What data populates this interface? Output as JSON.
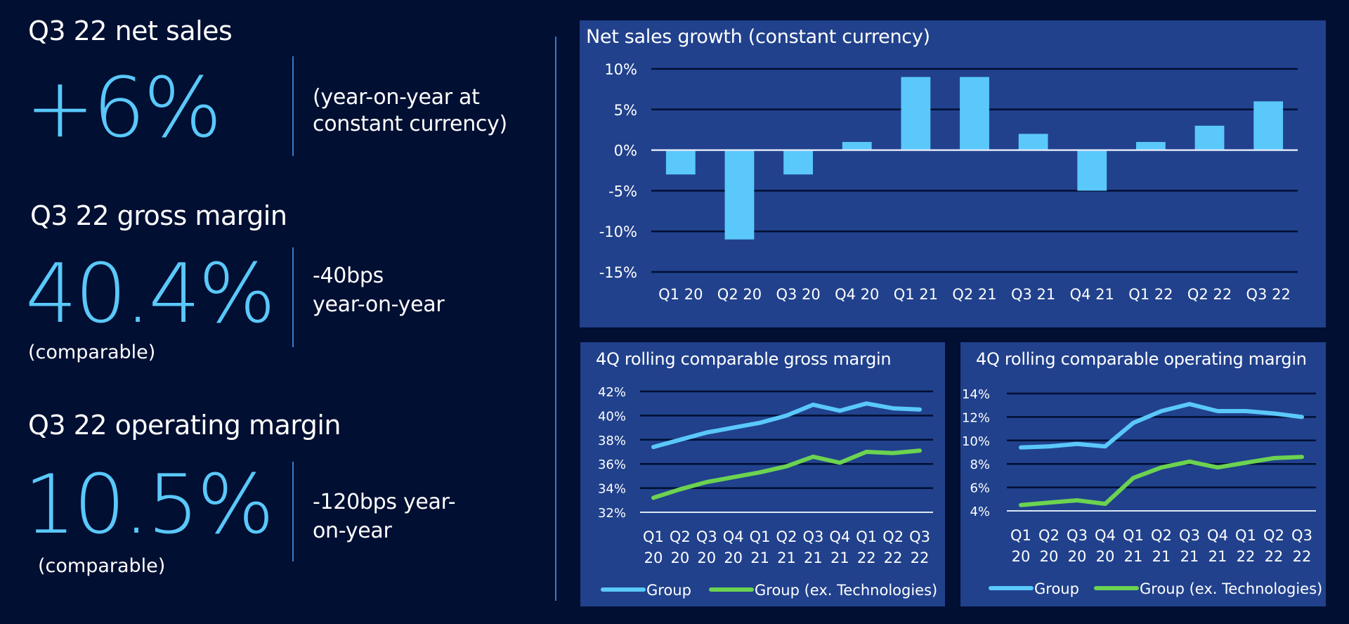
{
  "colors": {
    "background": "#000f32",
    "panel": "#21418c",
    "accent": "#5ac8fa",
    "group_line": "#5ac8fa",
    "group_ex_tech_line": "#6cd350",
    "gridline": "#000f32",
    "baseline": "#dde6f5",
    "separator": "#3a78c8"
  },
  "kpis": [
    {
      "title": "Q3 22 net sales",
      "value": "+6%",
      "note_line1": "(year-on-year at",
      "note_line2": "constant currency)",
      "sub": ""
    },
    {
      "title": "Q3 22 gross margin",
      "value": "40.4%",
      "note_line1": "-40bps",
      "note_line2": "year-on-year",
      "sub": "(comparable)"
    },
    {
      "title": "Q3 22 operating margin",
      "value": "10.5%",
      "note_line1": "-120bps year-",
      "note_line2": "on-year",
      "sub": "(comparable)"
    }
  ],
  "chart_data": [
    {
      "type": "bar",
      "title": "Net sales growth (constant currency)",
      "categories": [
        "Q1 20",
        "Q2 20",
        "Q3 20",
        "Q4 20",
        "Q1 21",
        "Q2 21",
        "Q3 21",
        "Q4 21",
        "Q1 22",
        "Q2 22",
        "Q3 22"
      ],
      "values": [
        -3,
        -11,
        -3,
        1,
        9,
        9,
        2,
        -5,
        1,
        3,
        6
      ],
      "unit": "%",
      "xlabel": "",
      "ylabel": "",
      "ylim": [
        -15,
        10
      ],
      "yticks": [
        10,
        5,
        0,
        -5,
        -10,
        -15
      ],
      "ytick_labels": [
        "10%",
        "5%",
        "0%",
        "-5%",
        "-10%",
        "-15%"
      ],
      "grid": true,
      "legend": "none"
    },
    {
      "type": "line",
      "title": "4Q rolling comparable gross margin",
      "categories": [
        [
          "Q1",
          "20"
        ],
        [
          "Q2",
          "20"
        ],
        [
          "Q3",
          "20"
        ],
        [
          "Q4",
          "20"
        ],
        [
          "Q1",
          "21"
        ],
        [
          "Q2",
          "21"
        ],
        [
          "Q3",
          "21"
        ],
        [
          "Q4",
          "21"
        ],
        [
          "Q1",
          "22"
        ],
        [
          "Q2",
          "22"
        ],
        [
          "Q3",
          "22"
        ]
      ],
      "series": [
        {
          "name": "Group",
          "color": "#5ac8fa",
          "values": [
            37.4,
            38.0,
            38.6,
            39.0,
            39.4,
            40.0,
            40.9,
            40.4,
            41.0,
            40.6,
            40.5
          ]
        },
        {
          "name": "Group (ex. Technologies)",
          "color": "#6cd350",
          "values": [
            33.2,
            33.9,
            34.5,
            34.9,
            35.3,
            35.8,
            36.6,
            36.1,
            37.0,
            36.9,
            37.1
          ]
        }
      ],
      "unit": "%",
      "ylim": [
        32,
        42
      ],
      "yticks": [
        42,
        40,
        38,
        36,
        34,
        32
      ],
      "ytick_labels": [
        "42%",
        "40%",
        "38%",
        "36%",
        "34%",
        "32%"
      ],
      "grid": true,
      "legend": "bottom"
    },
    {
      "type": "line",
      "title": "4Q rolling comparable operating margin",
      "categories": [
        [
          "Q1",
          "20"
        ],
        [
          "Q2",
          "20"
        ],
        [
          "Q3",
          "20"
        ],
        [
          "Q4",
          "20"
        ],
        [
          "Q1",
          "21"
        ],
        [
          "Q2",
          "21"
        ],
        [
          "Q3",
          "21"
        ],
        [
          "Q4",
          "21"
        ],
        [
          "Q1",
          "22"
        ],
        [
          "Q2",
          "22"
        ],
        [
          "Q3",
          "22"
        ]
      ],
      "series": [
        {
          "name": "Group",
          "color": "#5ac8fa",
          "values": [
            9.4,
            9.5,
            9.7,
            9.5,
            11.5,
            12.5,
            13.1,
            12.5,
            12.5,
            12.3,
            12.0
          ]
        },
        {
          "name": "Group (ex. Technologies)",
          "color": "#6cd350",
          "values": [
            4.5,
            4.7,
            4.9,
            4.6,
            6.8,
            7.7,
            8.2,
            7.7,
            8.1,
            8.5,
            8.6
          ]
        }
      ],
      "unit": "%",
      "ylim": [
        4,
        14
      ],
      "yticks": [
        14,
        12,
        10,
        8,
        6,
        4
      ],
      "ytick_labels": [
        "14%",
        "12%",
        "10%",
        "8%",
        "6%",
        "4%"
      ],
      "grid": true,
      "legend": "bottom"
    }
  ]
}
